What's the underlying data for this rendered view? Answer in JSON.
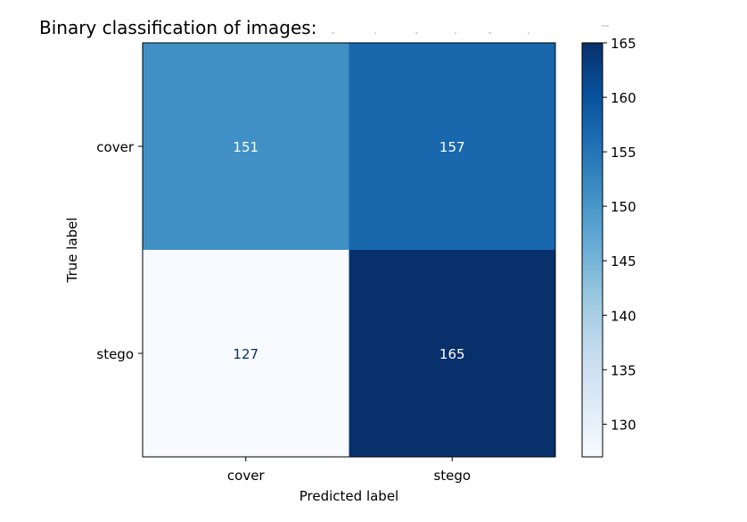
{
  "chart_data": {
    "type": "heatmap",
    "title": "Binary classification of images:",
    "xlabel": "Predicted label",
    "ylabel": "True label",
    "x_categories": [
      "cover",
      "stego"
    ],
    "y_categories": [
      "cover",
      "stego"
    ],
    "values": [
      [
        151,
        157
      ],
      [
        127,
        165
      ]
    ],
    "cell_labels": [
      [
        "151",
        "157"
      ],
      [
        "127",
        "165"
      ]
    ],
    "colormap": "Blues",
    "colorbar": {
      "min": 127,
      "max": 165,
      "ticks": [
        130,
        135,
        140,
        145,
        150,
        155,
        160,
        165
      ],
      "tick_labels": [
        "130",
        "135",
        "140",
        "145",
        "150",
        "155",
        "160",
        "165"
      ]
    },
    "light_text_color": "#ffffff",
    "dark_text_color": "#08306b",
    "grid": false
  }
}
